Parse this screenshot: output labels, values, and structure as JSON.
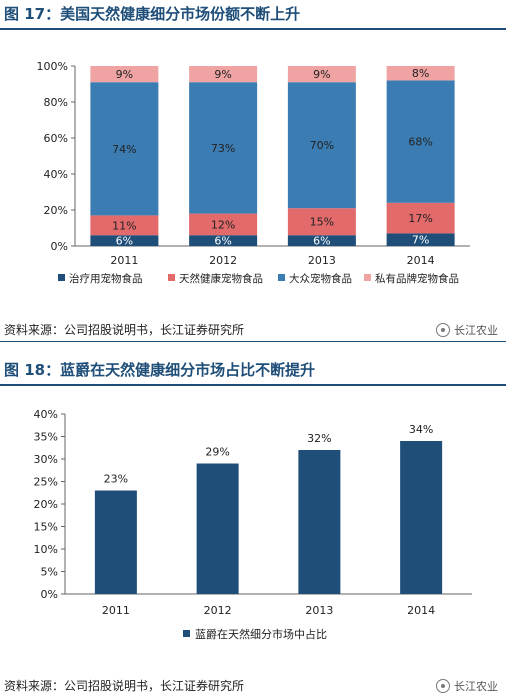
{
  "figure1": {
    "title": "图 17：美国天然健康细分市场份额不断上升",
    "source": "资料来源：公司招股说明书，长江证券研究所",
    "watermark": "长江农业"
  },
  "figure2": {
    "title": "图 18：蓝爵在天然健康细分市场占比不断提升",
    "source": "资料来源：公司招股说明书，长江证券研究所",
    "watermark": "长江农业"
  },
  "colors": {
    "dark_blue": "#1f4e79",
    "steel_blue": "#3b7cb2",
    "red": "#e26a6a",
    "pink": "#f0a3a3",
    "bar2": "#1f4e79"
  },
  "chart_data": [
    {
      "type": "bar",
      "stacked": true,
      "categories": [
        "2011",
        "2012",
        "2013",
        "2014"
      ],
      "series": [
        {
          "name": "治疗用宠物食品",
          "values": [
            6,
            6,
            6,
            7
          ],
          "labels": [
            "6%",
            "6%",
            "6%",
            "7%"
          ]
        },
        {
          "name": "天然健康宠物食品",
          "values": [
            11,
            12,
            15,
            17
          ],
          "labels": [
            "11%",
            "12%",
            "15%",
            "17%"
          ]
        },
        {
          "name": "大众宠物食品",
          "values": [
            74,
            73,
            70,
            68
          ],
          "labels": [
            "74%",
            "73%",
            "70%",
            "68%"
          ]
        },
        {
          "name": "私有品牌宠物食品",
          "values": [
            9,
            9,
            9,
            8
          ],
          "labels": [
            "9%",
            "9%",
            "9%",
            "8%"
          ]
        }
      ],
      "ylim": [
        0,
        100
      ],
      "yticks": [
        "0%",
        "20%",
        "40%",
        "60%",
        "80%",
        "100%"
      ],
      "legend": "bottom"
    },
    {
      "type": "bar",
      "categories": [
        "2011",
        "2012",
        "2013",
        "2014"
      ],
      "series": [
        {
          "name": "蓝爵在天然细分市场中占比",
          "values": [
            23,
            29,
            32,
            34
          ],
          "labels": [
            "23%",
            "29%",
            "32%",
            "34%"
          ]
        }
      ],
      "ylim": [
        0,
        40
      ],
      "yticks": [
        "0%",
        "5%",
        "10%",
        "15%",
        "20%",
        "25%",
        "30%",
        "35%",
        "40%"
      ],
      "legend": "bottom"
    }
  ]
}
